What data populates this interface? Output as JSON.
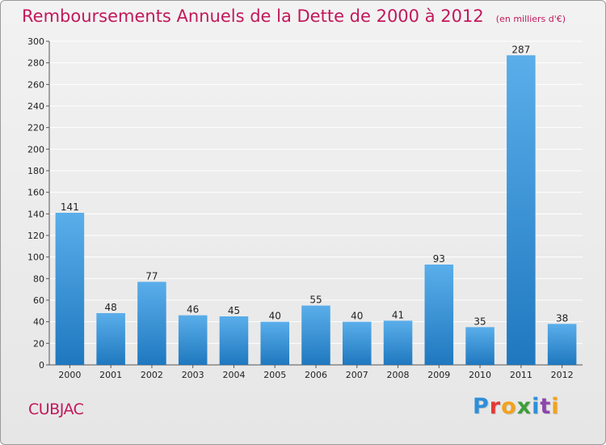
{
  "header": {
    "title": "Remboursements Annuels de la Dette de 2000 à 2012",
    "subtitle": "(en milliers d'€)"
  },
  "footer": {
    "commune": "CUBJAC",
    "logo_text": "Proxiti",
    "logo_colors": [
      "#2e8fd8",
      "#e53935",
      "#f2a21b",
      "#3f9d3a",
      "#2e8fd8",
      "#8e44ad",
      "#f2a21b"
    ]
  },
  "colors": {
    "title": "#c2185b",
    "bar_top": "#5aaeea",
    "bar_bottom": "#1f78bf",
    "grid": "#ffffff"
  },
  "chart_data": {
    "type": "bar",
    "title": "Remboursements Annuels de la Dette de 2000 à 2012",
    "subtitle": "(en milliers d'€)",
    "categories": [
      "2000",
      "2001",
      "2002",
      "2003",
      "2004",
      "2005",
      "2006",
      "2007",
      "2008",
      "2009",
      "2010",
      "2011",
      "2012"
    ],
    "values": [
      141,
      48,
      77,
      46,
      45,
      40,
      55,
      40,
      41,
      93,
      35,
      287,
      38
    ],
    "xlabel": "",
    "ylabel": "",
    "ylim": [
      0,
      300
    ],
    "yticks": [
      0,
      20,
      40,
      60,
      80,
      100,
      120,
      140,
      160,
      180,
      200,
      220,
      240,
      260,
      280,
      300
    ],
    "grid": true,
    "legend": "none"
  }
}
